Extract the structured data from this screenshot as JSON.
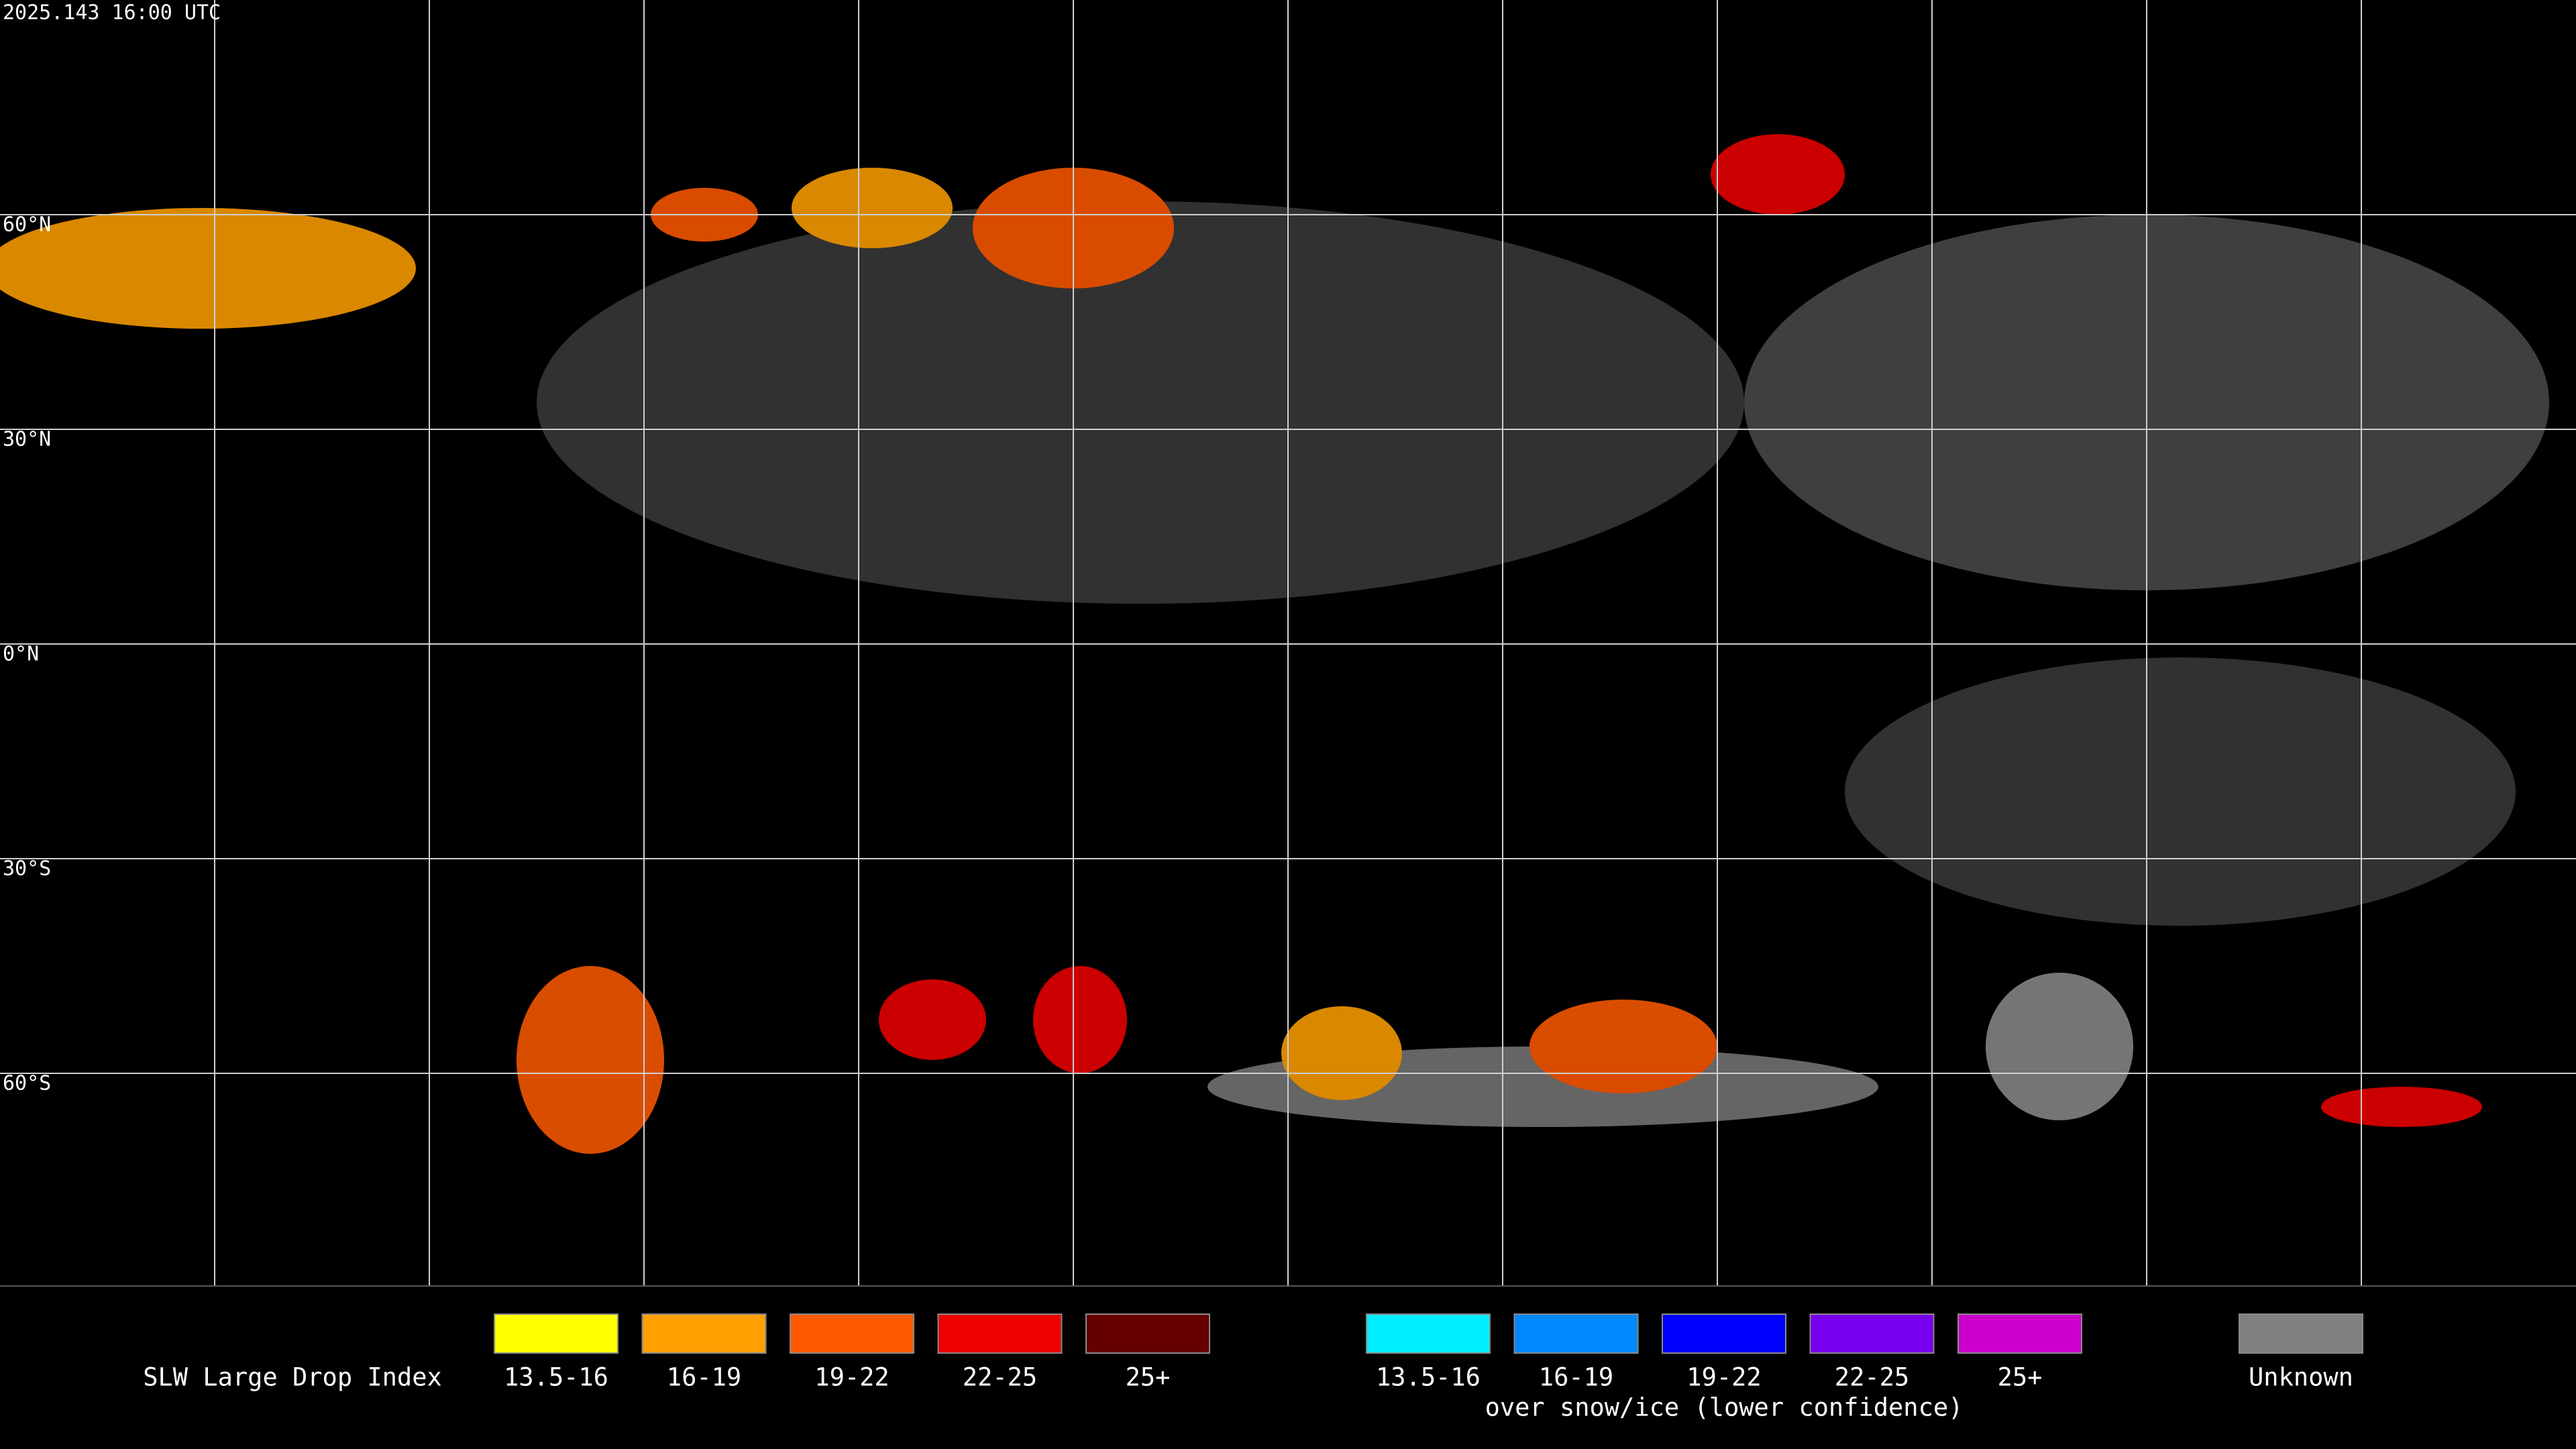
{
  "timestamp": "2025.143 16:00 UTC",
  "latitude_labels": [
    "60°N",
    "30°N",
    "0°N",
    "30°S",
    "60°S"
  ],
  "legend": {
    "title": "SLW Large Drop Index",
    "groups": [
      {
        "items": [
          {
            "label": "13.5-16",
            "color": "#ffff00"
          },
          {
            "label": "16-19",
            "color": "#ffa000"
          },
          {
            "label": "19-22",
            "color": "#ff5a00"
          },
          {
            "label": "22-25",
            "color": "#ee0000"
          },
          {
            "label": "25+",
            "color": "#660000"
          }
        ]
      },
      {
        "items": [
          {
            "label": "13.5-16",
            "color": "#00eeff"
          },
          {
            "label": "16-19",
            "color": "#0088ff"
          },
          {
            "label": "19-22",
            "color": "#0000ff"
          },
          {
            "label": "22-25",
            "color": "#7700ee"
          },
          {
            "label": "25+",
            "color": "#cc00cc"
          }
        ],
        "caption": "over snow/ice (lower confidence)"
      },
      {
        "items": [
          {
            "label": "Unknown",
            "color": "#808080"
          }
        ]
      }
    ]
  }
}
